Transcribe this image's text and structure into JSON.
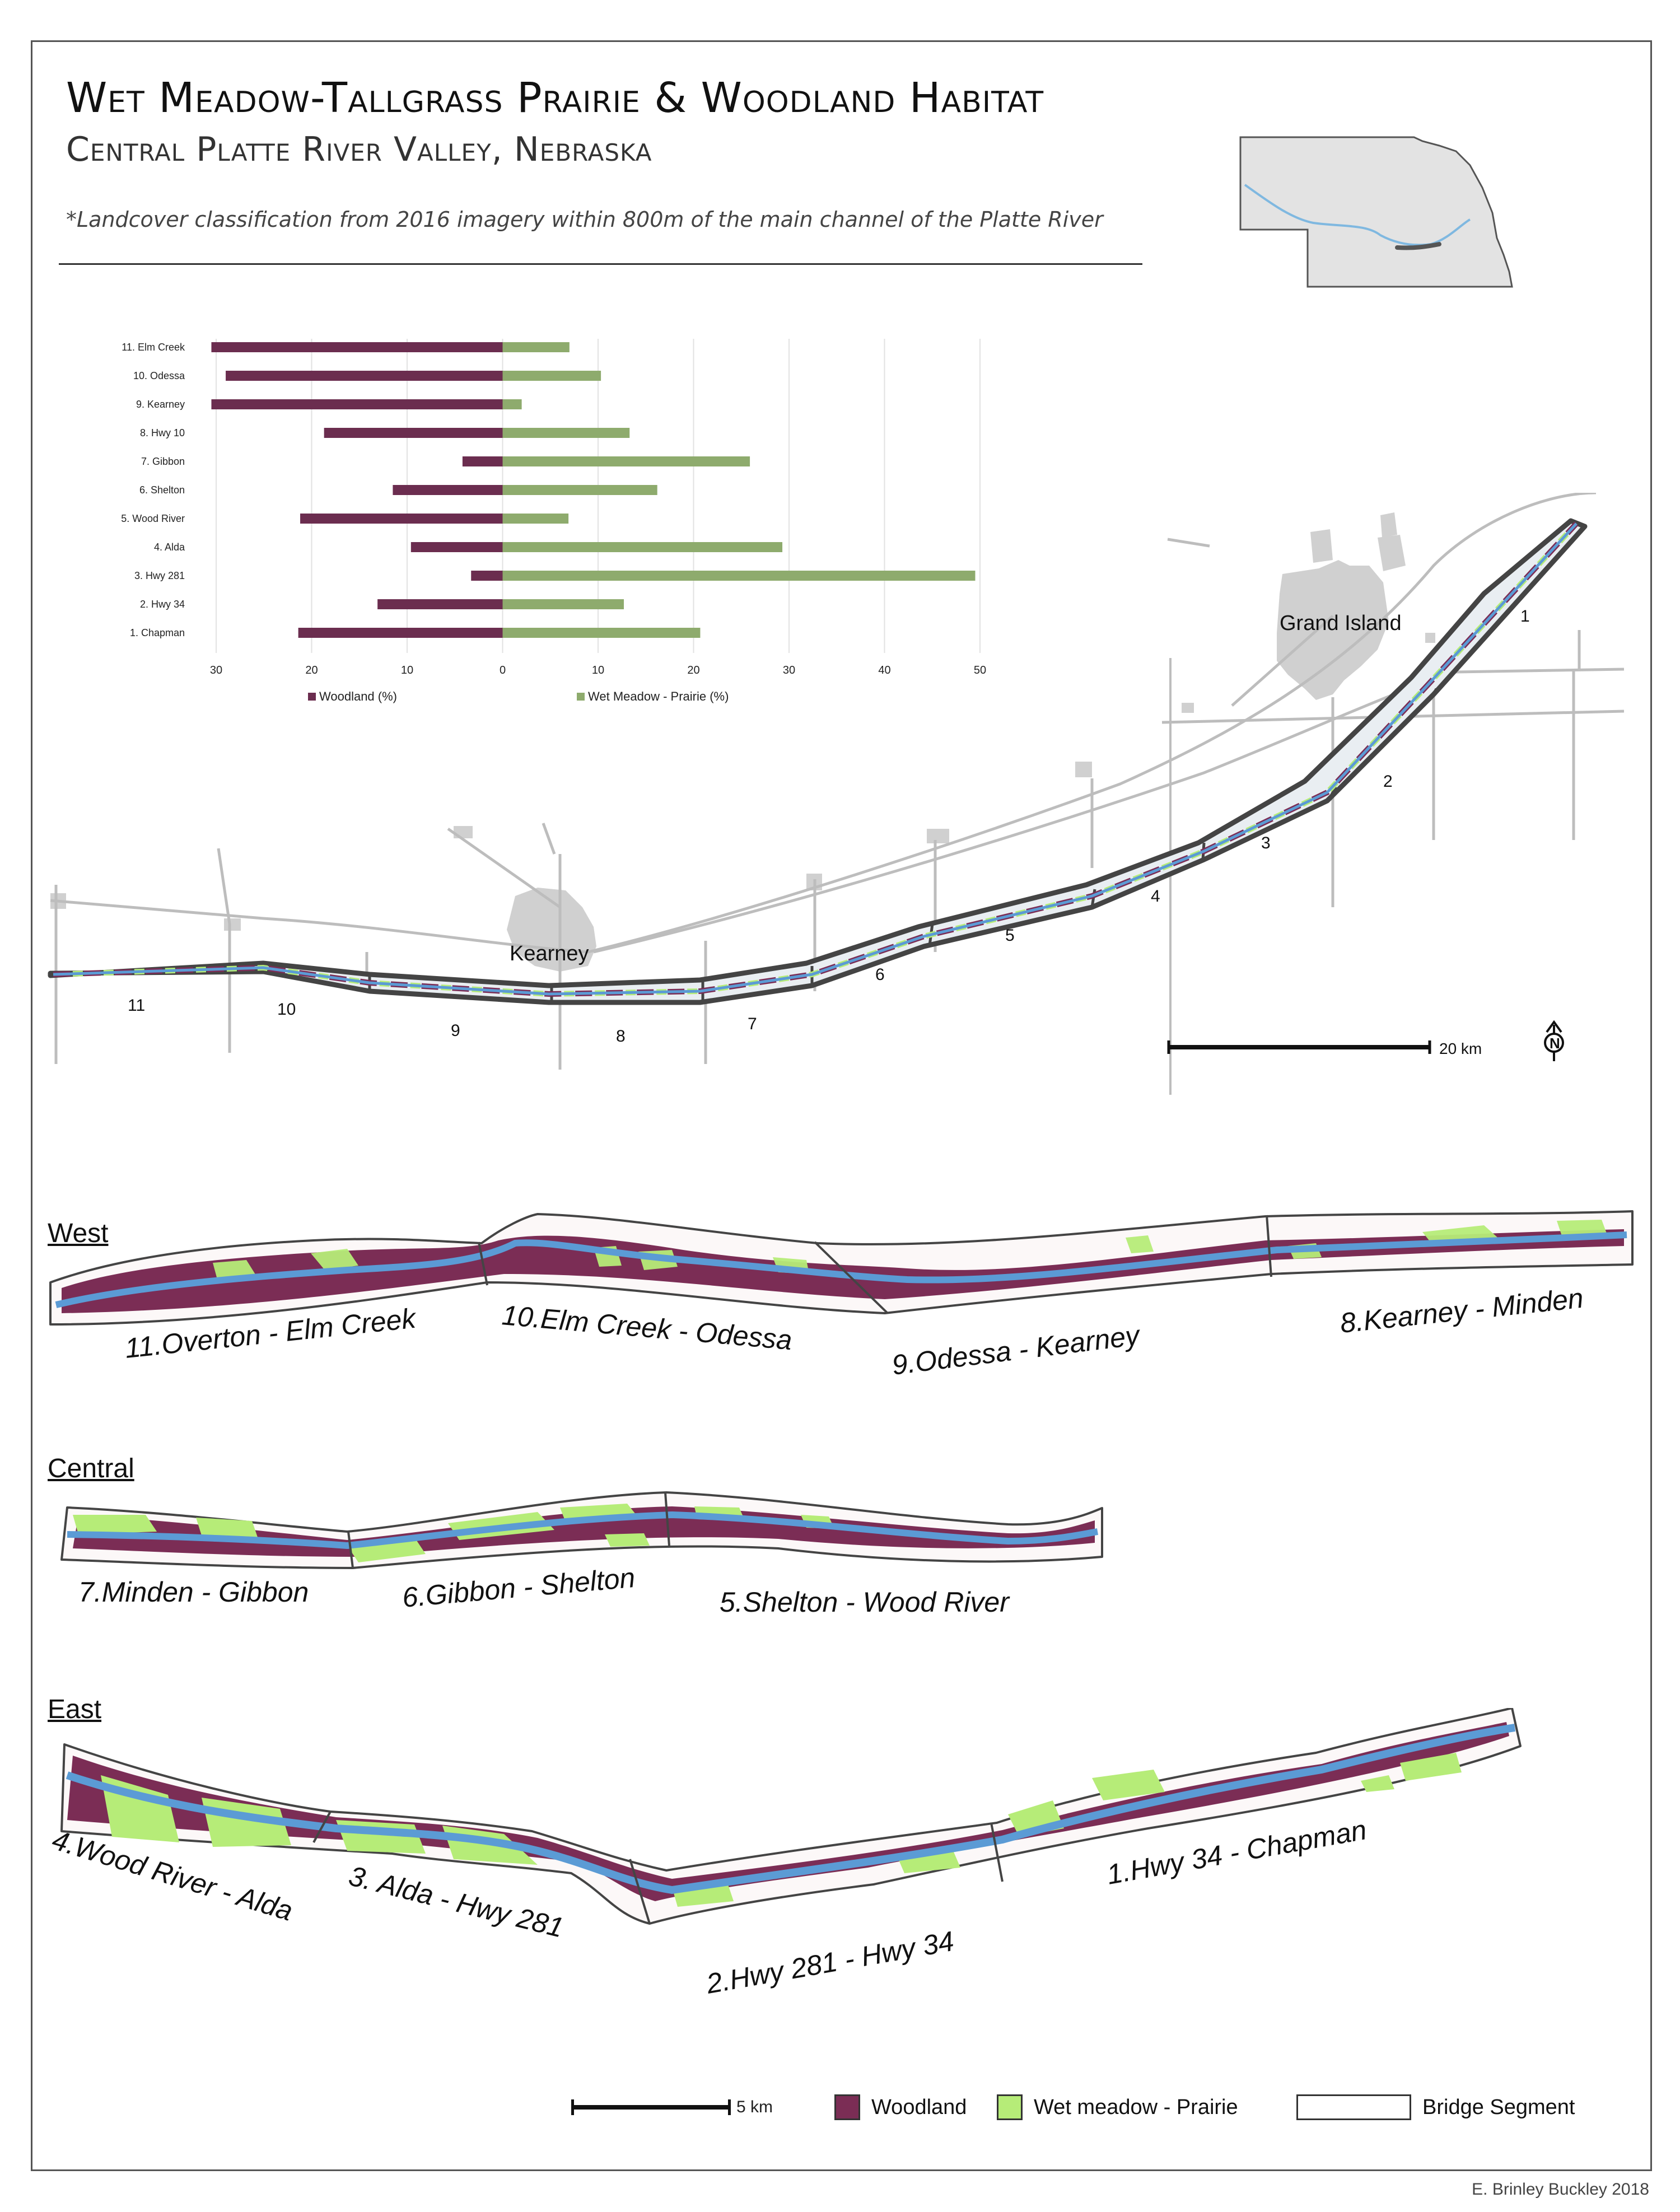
{
  "title": {
    "line1": "Wet Meadow-Tallgrass Prairie & Woodland Habitat",
    "line2": "Central Platte River Valley, Nebraska",
    "subtitle": "*Landcover classification from 2016 imagery within 800m of the main channel of the Platte River"
  },
  "chart_data": {
    "type": "bar",
    "orientation": "horizontal-diverging",
    "categories": [
      "11. Elm Creek",
      "10. Odessa",
      "9. Kearney",
      "8. Hwy 10",
      "7. Gibbon",
      "6. Shelton",
      "5. Wood River",
      "4. Alda",
      "3. Hwy 281",
      "2. Hwy 34",
      "1. Chapman"
    ],
    "series": [
      {
        "name": "Woodland (%)",
        "color": "#6b2d4f",
        "values": [
          30.5,
          29,
          30.5,
          18.7,
          4.2,
          11.5,
          21.2,
          9.6,
          3.3,
          13.1,
          21.4
        ]
      },
      {
        "name": "Wet Meadow - Prairie (%)",
        "color": "#8eab6d",
        "values": [
          7,
          10.3,
          2,
          13.3,
          25.9,
          16.2,
          6.9,
          29.3,
          49.5,
          12.7,
          20.7
        ]
      }
    ],
    "xaxis_ticks": [
      "30",
      "20",
      "10",
      "0",
      "10",
      "20",
      "30",
      "40",
      "50"
    ],
    "xlim": [
      -30,
      50
    ],
    "legend_position": "bottom",
    "grid": "vertical"
  },
  "overview_map": {
    "cities": [
      "Grand Island",
      "Kearney"
    ],
    "segment_numbers": [
      "1",
      "2",
      "3",
      "4",
      "5",
      "6",
      "7",
      "8",
      "9",
      "10",
      "11"
    ],
    "scale_label": "20 km",
    "north_label": "N"
  },
  "panels": {
    "west": {
      "heading": "West",
      "segments": [
        "11.Overton - Elm Creek",
        "10.Elm Creek - Odessa",
        "9.Odessa - Kearney",
        "8.Kearney - Minden"
      ]
    },
    "central": {
      "heading": "Central",
      "segments": [
        "7.Minden - Gibbon",
        "6.Gibbon - Shelton",
        "5.Shelton - Wood River"
      ]
    },
    "east": {
      "heading": "East",
      "segments": [
        "4.Wood River - Alda",
        "3. Alda - Hwy 281",
        "2.Hwy 281 - Hwy 34",
        "1.Hwy 34 - Chapman"
      ]
    }
  },
  "legend": {
    "scale_label": "5 km",
    "items": [
      {
        "label": "Woodland",
        "color": "#7b2d55"
      },
      {
        "label": "Wet meadow - Prairie",
        "color": "#b6ec78"
      },
      {
        "label": "Bridge Segment",
        "color": "#ffffff"
      }
    ]
  },
  "credit": "E. Brinley Buckley 2018",
  "colors": {
    "woodland": "#7b2d55",
    "wetmeadow": "#b6ec78",
    "river": "#5b9bd5",
    "roads": "#bdbdbd",
    "urban": "#d0d0d0"
  },
  "icons": [
    "nebraska-state-map",
    "north-arrow-icon"
  ]
}
